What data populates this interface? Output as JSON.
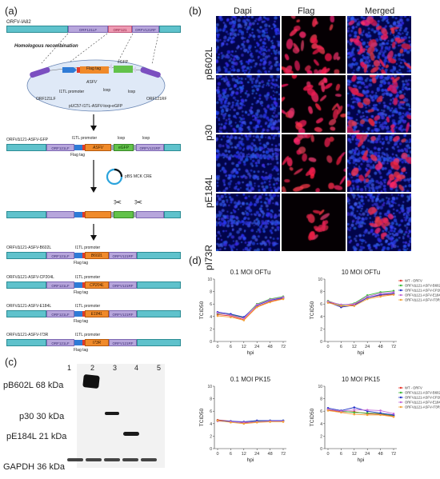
{
  "panels": {
    "a": "(a)",
    "b": "(b)",
    "c": "(c)",
    "d": "(d)"
  },
  "a": {
    "orfv_label": "ORFV-IA82",
    "orfv_segments": [
      "ORF121LF",
      "ORF121",
      "ORFV121RF"
    ],
    "homologous": "Homologous recombination",
    "flag_tag": "Flag tag",
    "asfv": "ASFV",
    "egfp": "eGFP",
    "itl_promoter": "I1TL promoter",
    "loxp1": "loxp",
    "loxp2": "loxp",
    "plasmid_left": "ORF121LF",
    "plasmid_right": "ORF121RF",
    "plasmid_name": "pUC57-I1TL-ASFV-loxp-eGFP",
    "construct1": {
      "name": "ORFVΔ121-ASFV-GFP",
      "itl": "I1TL promoter",
      "loxp1": "loxp",
      "loxp2": "loxp",
      "left": "ORF121LF",
      "asfv": "ASFV",
      "egfp": "eGFP",
      "right": "ORFV121RF",
      "flag": "Flag tag"
    },
    "cre_plasmid": "pBS MCK CRE",
    "final": [
      {
        "name": "ORFVΔ121-ASFV-B602L",
        "promoter": "I1TL promoter",
        "left": "ORF121LF",
        "gene": "B602L",
        "right": "ORFV121RF",
        "flag": "Flag tag"
      },
      {
        "name": "ORFVΔ121-ASFV-CP204L",
        "promoter": "I1TL promoter",
        "left": "ORF121LF",
        "gene": "CP204L",
        "right": "ORFV121RF",
        "flag": "Flag tag"
      },
      {
        "name": "ORFVΔ121-ASFV-E184L",
        "promoter": "I1TL promoter",
        "left": "ORF121LF",
        "gene": "E184L",
        "right": "ORFV121RF",
        "flag": "Flag tag"
      },
      {
        "name": "ORFVΔ121-ASFV-I73R",
        "promoter": "I1TL promoter",
        "left": "ORF121LF",
        "gene": "I73R",
        "right": "ORFV121RF",
        "flag": "Flag tag"
      }
    ]
  },
  "b": {
    "columns": [
      "Dapi",
      "Flag",
      "Merged"
    ],
    "rows": [
      "pB602L",
      "p30",
      "pE184L",
      "pI73R"
    ]
  },
  "c": {
    "lanes": [
      "1",
      "2",
      "3",
      "4",
      "5"
    ],
    "labels": [
      "pB602L 68 kDa",
      "p30 30 kDa",
      "pE184L 21 kDa",
      "GAPDH 36 kDa"
    ]
  },
  "chart_data": [
    {
      "type": "line",
      "title": "0.1 MOI OFTu",
      "xlabel": "hpi",
      "ylabel": "TCID50",
      "x": [
        0,
        6,
        12,
        24,
        48,
        72
      ],
      "series": [
        {
          "name": "WT - ORFV",
          "color": "#e8352b",
          "values": [
            4.3,
            4.1,
            3.5,
            5.6,
            6.4,
            6.9
          ]
        },
        {
          "name": "ORFVΔ121-ASFV-B602L",
          "color": "#3db83a",
          "values": [
            4.5,
            4.3,
            3.8,
            6.0,
            6.8,
            7.2
          ]
        },
        {
          "name": "ORFVΔ121-ASFV-CP204L",
          "color": "#2433c8",
          "values": [
            4.7,
            4.4,
            3.9,
            5.8,
            6.6,
            7.0
          ]
        },
        {
          "name": "ORFVΔ121-ASFV-E184L",
          "color": "#c26ad8",
          "values": [
            4.6,
            4.2,
            3.7,
            5.9,
            6.7,
            7.1
          ]
        },
        {
          "name": "ORFVΔ121-ASFV-I73R",
          "color": "#f2a23a",
          "values": [
            4.1,
            3.9,
            3.4,
            5.5,
            6.3,
            6.8
          ]
        }
      ]
    },
    {
      "type": "line",
      "title": "10 MOI OFTu",
      "xlabel": "hpi",
      "ylabel": "TCID50",
      "x": [
        0,
        6,
        12,
        24,
        48,
        72
      ],
      "series": [
        {
          "name": "WT - ORFV",
          "color": "#e8352b",
          "values": [
            6.4,
            5.6,
            5.9,
            7.0,
            7.4,
            7.6
          ]
        },
        {
          "name": "ORFVΔ121-ASFV-B602L",
          "color": "#3db83a",
          "values": [
            6.5,
            5.8,
            6.1,
            7.4,
            7.9,
            8.1
          ]
        },
        {
          "name": "ORFVΔ121-ASFV-CP204L",
          "color": "#2433c8",
          "values": [
            6.3,
            5.5,
            5.8,
            7.0,
            7.5,
            7.7
          ]
        },
        {
          "name": "ORFVΔ121-ASFV-E184L",
          "color": "#c26ad8",
          "values": [
            6.4,
            5.9,
            6.0,
            7.2,
            7.7,
            7.9
          ]
        },
        {
          "name": "ORFVΔ121-ASFV-I73R",
          "color": "#f2a23a",
          "values": [
            6.2,
            5.7,
            5.7,
            6.8,
            7.2,
            7.5
          ]
        }
      ]
    },
    {
      "type": "line",
      "title": "0.1 MOI PK15",
      "xlabel": "hpi",
      "ylabel": "TCID50",
      "x": [
        0,
        6,
        12,
        24,
        48,
        72
      ],
      "series": [
        {
          "name": "WT - ORFV",
          "color": "#e8352b",
          "values": [
            4.6,
            4.4,
            4.1,
            4.3,
            4.4,
            4.4
          ]
        },
        {
          "name": "ORFVΔ121-ASFV-B602L",
          "color": "#3db83a",
          "values": [
            4.5,
            4.3,
            4.2,
            4.4,
            4.5,
            4.5
          ]
        },
        {
          "name": "ORFVΔ121-ASFV-CP204L",
          "color": "#2433c8",
          "values": [
            4.5,
            4.4,
            4.3,
            4.5,
            4.5,
            4.5
          ]
        },
        {
          "name": "ORFVΔ121-ASFV-E184L",
          "color": "#c26ad8",
          "values": [
            4.4,
            4.3,
            4.2,
            4.3,
            4.4,
            4.4
          ]
        },
        {
          "name": "ORFVΔ121-ASFV-I73R",
          "color": "#f2a23a",
          "values": [
            4.5,
            4.2,
            4.0,
            4.2,
            4.3,
            4.3
          ]
        }
      ]
    },
    {
      "type": "line",
      "title": "10 MOI PK15",
      "xlabel": "hpi",
      "ylabel": "TCID50",
      "x": [
        0,
        6,
        12,
        24,
        48,
        72
      ],
      "series": [
        {
          "name": "WT - ORFV",
          "color": "#e8352b",
          "values": [
            6.2,
            5.9,
            5.9,
            5.6,
            5.5,
            5.2
          ]
        },
        {
          "name": "ORFVΔ121-ASFV-B602L",
          "color": "#3db83a",
          "values": [
            6.3,
            6.0,
            5.8,
            5.7,
            5.6,
            5.3
          ]
        },
        {
          "name": "ORFVΔ121-ASFV-CP204L",
          "color": "#2433c8",
          "values": [
            6.5,
            6.1,
            6.6,
            6.0,
            5.7,
            5.4
          ]
        },
        {
          "name": "ORFVΔ121-ASFV-E184L",
          "color": "#c26ad8",
          "values": [
            6.3,
            6.0,
            6.2,
            6.2,
            6.1,
            5.6
          ]
        },
        {
          "name": "ORFVΔ121-ASFV-I73R",
          "color": "#f2a23a",
          "values": [
            6.1,
            5.8,
            5.5,
            5.4,
            5.4,
            5.1
          ]
        }
      ]
    }
  ],
  "legend": {
    "items": [
      {
        "name": "WT - ORFV",
        "color": "#e8352b"
      },
      {
        "name": "ORFVΔ121-ASFV-B602L",
        "color": "#3db83a"
      },
      {
        "name": "ORFVΔ121-ASFV-CP204L",
        "color": "#2433c8"
      },
      {
        "name": "ORFVΔ121-ASFV-E184L",
        "color": "#c26ad8"
      },
      {
        "name": "ORFVΔ121-ASFV-I73R",
        "color": "#f2a23a"
      }
    ]
  }
}
